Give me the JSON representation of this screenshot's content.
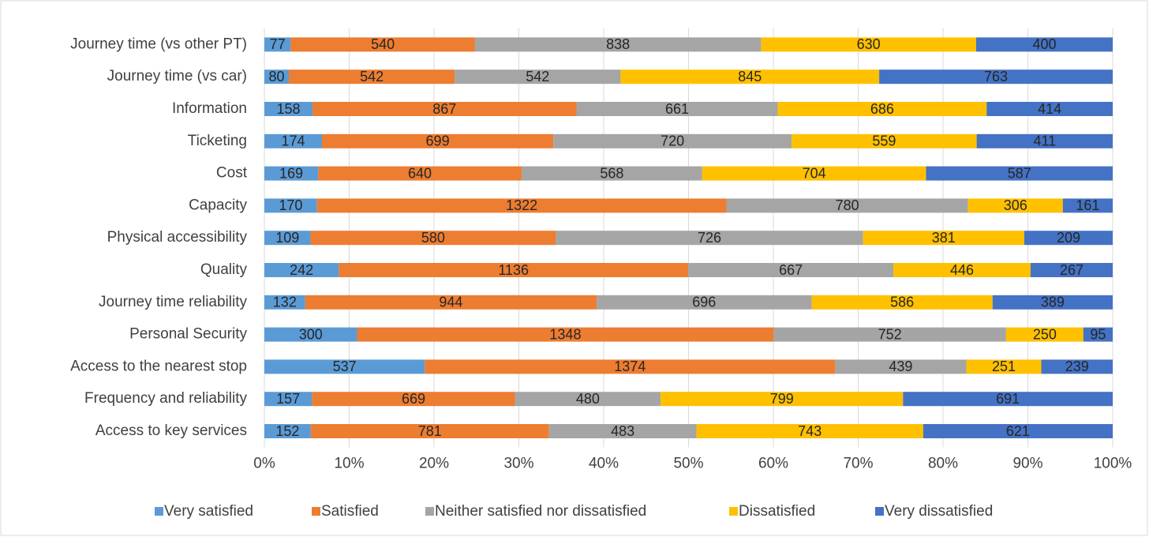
{
  "chart_data": {
    "type": "bar",
    "orientation": "horizontal",
    "stacked": "percent",
    "categories": [
      "Journey time (vs other PT)",
      "Journey time (vs car)",
      "Information",
      "Ticketing",
      "Cost",
      "Capacity",
      "Physical accessibility",
      "Quality",
      "Journey time reliability",
      "Personal Security",
      "Access to the nearest stop",
      "Frequency and reliability",
      "Access to key services"
    ],
    "series": [
      {
        "name": "Very satisfied",
        "color": "#5b9bd5",
        "values": [
          77,
          80,
          158,
          174,
          169,
          170,
          109,
          242,
          132,
          300,
          537,
          157,
          152
        ]
      },
      {
        "name": "Satisfied",
        "color": "#ed7d31",
        "values": [
          540,
          542,
          867,
          699,
          640,
          1322,
          580,
          1136,
          944,
          1348,
          1374,
          669,
          781
        ]
      },
      {
        "name": "Neither satisfied nor dissatisfied",
        "color": "#a5a5a5",
        "values": [
          838,
          542,
          661,
          720,
          568,
          780,
          726,
          667,
          696,
          752,
          439,
          480,
          483
        ]
      },
      {
        "name": "Dissatisfied",
        "color": "#ffc000",
        "values": [
          630,
          845,
          686,
          559,
          704,
          306,
          381,
          446,
          586,
          250,
          251,
          799,
          743
        ]
      },
      {
        "name": "Very dissatisfied",
        "color": "#4472c4",
        "values": [
          400,
          763,
          414,
          411,
          587,
          161,
          209,
          267,
          389,
          95,
          239,
          691,
          621
        ]
      }
    ],
    "xlim": [
      0,
      100
    ],
    "xticks": [
      {
        "value": 0,
        "label": "0%"
      },
      {
        "value": 10,
        "label": "10%"
      },
      {
        "value": 20,
        "label": "20%"
      },
      {
        "value": 30,
        "label": "30%"
      },
      {
        "value": 40,
        "label": "40%"
      },
      {
        "value": 50,
        "label": "50%"
      },
      {
        "value": 60,
        "label": "60%"
      },
      {
        "value": 70,
        "label": "70%"
      },
      {
        "value": 80,
        "label": "80%"
      },
      {
        "value": 90,
        "label": "90%"
      },
      {
        "value": 100,
        "label": "100%"
      }
    ],
    "grid": true,
    "legend": "bottom"
  }
}
